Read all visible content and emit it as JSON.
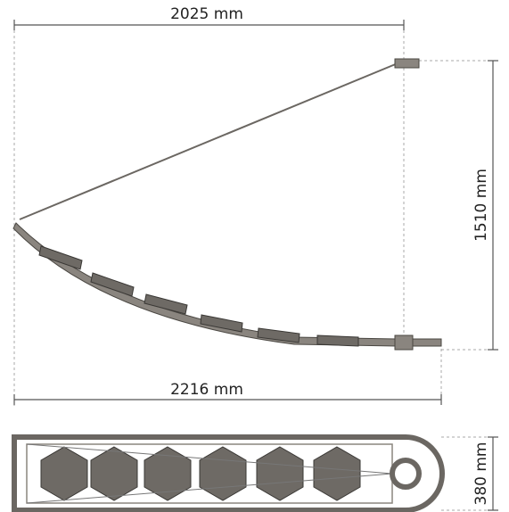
{
  "dimensions": {
    "top_width": "2025 mm",
    "height": "1510 mm",
    "total_width": "2216 mm",
    "depth": "380 mm"
  }
}
